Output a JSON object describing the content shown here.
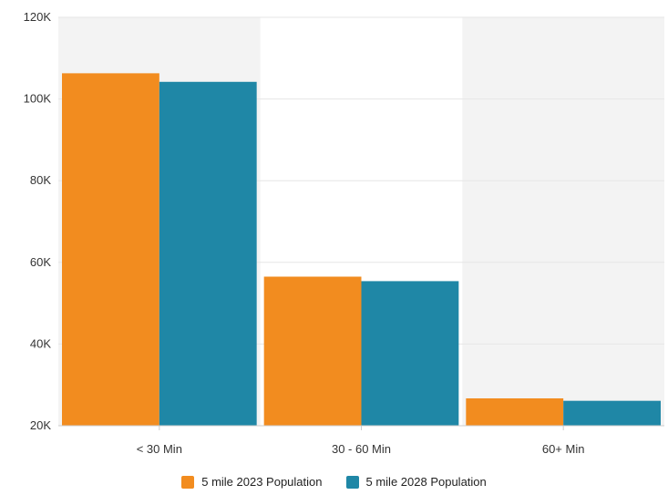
{
  "chart_data": {
    "type": "bar",
    "categories": [
      "< 30 Min",
      "30 - 60 Min",
      "60+ Min"
    ],
    "series": [
      {
        "name": "5 mile 2023 Population",
        "color": "#F28C1F",
        "values": [
          106300,
          56500,
          26700
        ]
      },
      {
        "name": "5 mile 2028 Population",
        "color": "#1F87A6",
        "values": [
          104200,
          55400,
          26100
        ]
      }
    ],
    "ylim": [
      20000,
      120000
    ],
    "yticks": [
      20000,
      40000,
      60000,
      80000,
      100000,
      120000
    ],
    "ytick_labels": [
      "20K",
      "40K",
      "60K",
      "80K",
      "100K",
      "120K"
    ],
    "grid": true,
    "alternating_band_color": "#F3F3F3",
    "legend_position": "bottom-center"
  }
}
